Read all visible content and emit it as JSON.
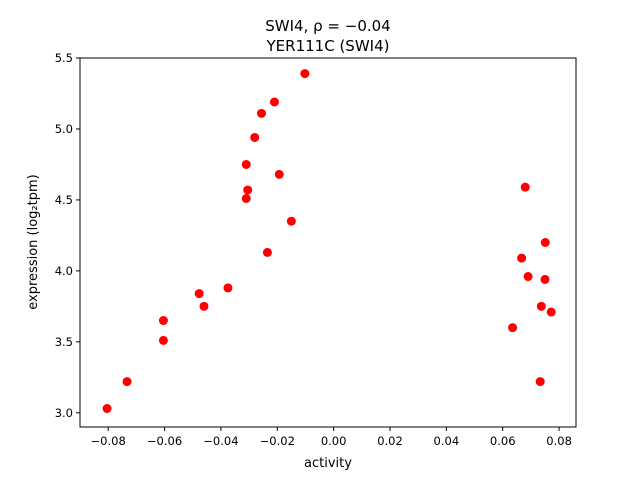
{
  "chart_data": {
    "type": "scatter",
    "title_line1": "SWI4, ρ = −0.04",
    "title_line2": "YER111C (SWI4)",
    "xlabel": "activity",
    "ylabel": "expression (log₂tpm)",
    "xlim": [
      -0.09,
      0.086
    ],
    "ylim": [
      2.9,
      5.5
    ],
    "xticks": [
      -0.08,
      -0.06,
      -0.04,
      -0.02,
      0.0,
      0.02,
      0.04,
      0.06,
      0.08
    ],
    "xtick_labels": [
      "−0.08",
      "−0.06",
      "−0.04",
      "−0.02",
      "0.00",
      "0.02",
      "0.04",
      "0.06",
      "0.08"
    ],
    "yticks": [
      3.0,
      3.5,
      4.0,
      4.5,
      5.0,
      5.5
    ],
    "ytick_labels": [
      "3.0",
      "3.5",
      "4.0",
      "4.5",
      "5.0",
      "5.5"
    ],
    "marker_color": "#ff0000",
    "points": [
      [
        -0.0804,
        3.03
      ],
      [
        -0.0733,
        3.22
      ],
      [
        -0.0604,
        3.65
      ],
      [
        -0.0604,
        3.51
      ],
      [
        -0.0477,
        3.84
      ],
      [
        -0.046,
        3.75
      ],
      [
        -0.0375,
        3.88
      ],
      [
        -0.031,
        4.75
      ],
      [
        -0.0305,
        4.57
      ],
      [
        -0.031,
        4.51
      ],
      [
        -0.028,
        4.94
      ],
      [
        -0.0256,
        5.11
      ],
      [
        -0.0235,
        4.13
      ],
      [
        -0.021,
        5.19
      ],
      [
        -0.0193,
        4.68
      ],
      [
        -0.015,
        4.35
      ],
      [
        -0.0102,
        5.39
      ],
      [
        0.0635,
        3.6
      ],
      [
        0.0667,
        4.09
      ],
      [
        0.068,
        4.59
      ],
      [
        0.069,
        3.96
      ],
      [
        0.0733,
        3.22
      ],
      [
        0.0737,
        3.75
      ],
      [
        0.075,
        3.94
      ],
      [
        0.0751,
        4.2
      ],
      [
        0.0772,
        3.71
      ]
    ]
  }
}
